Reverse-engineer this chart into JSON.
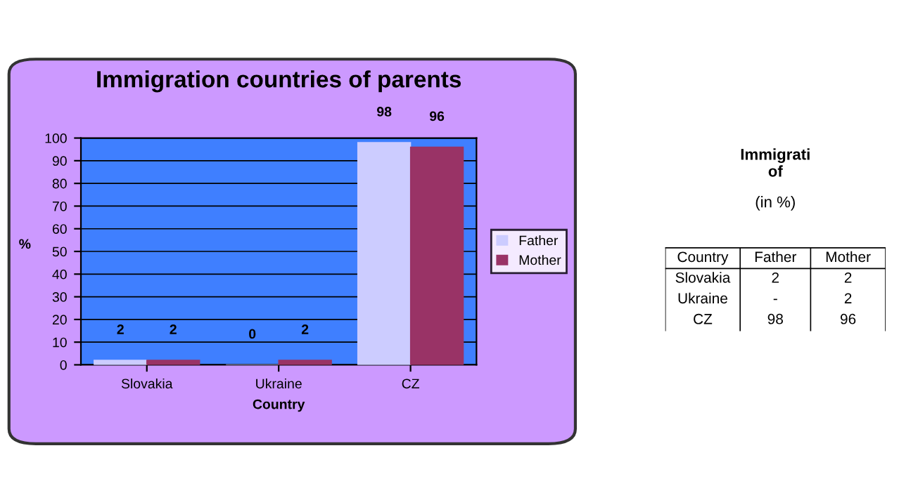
{
  "chart_data": [
    {
      "type": "bar",
      "title": "Immigration countries of parents",
      "xlabel": "Country",
      "ylabel": "%",
      "categories": [
        "Slovakia",
        "Ukraine",
        "CZ"
      ],
      "series": [
        {
          "name": "Father",
          "color": "#ccccff",
          "values": [
            2,
            0,
            98
          ]
        },
        {
          "name": "Mother",
          "color": "#993366",
          "values": [
            2,
            2,
            96
          ]
        }
      ],
      "ylim": [
        0,
        100
      ],
      "yticks": [
        0,
        10,
        20,
        30,
        40,
        50,
        60,
        70,
        80,
        90,
        100
      ],
      "grid": "y",
      "legend": "right",
      "data_labels": true
    },
    {
      "type": "other",
      "title": "Immigrati\nof",
      "subtitle": "(in %)",
      "annotations": [
        "Country",
        "Father",
        "Mother",
        "Slovakia",
        "2",
        "2",
        "Ukraine",
        "-",
        "2",
        "CZ",
        "98",
        "96"
      ]
    }
  ]
}
